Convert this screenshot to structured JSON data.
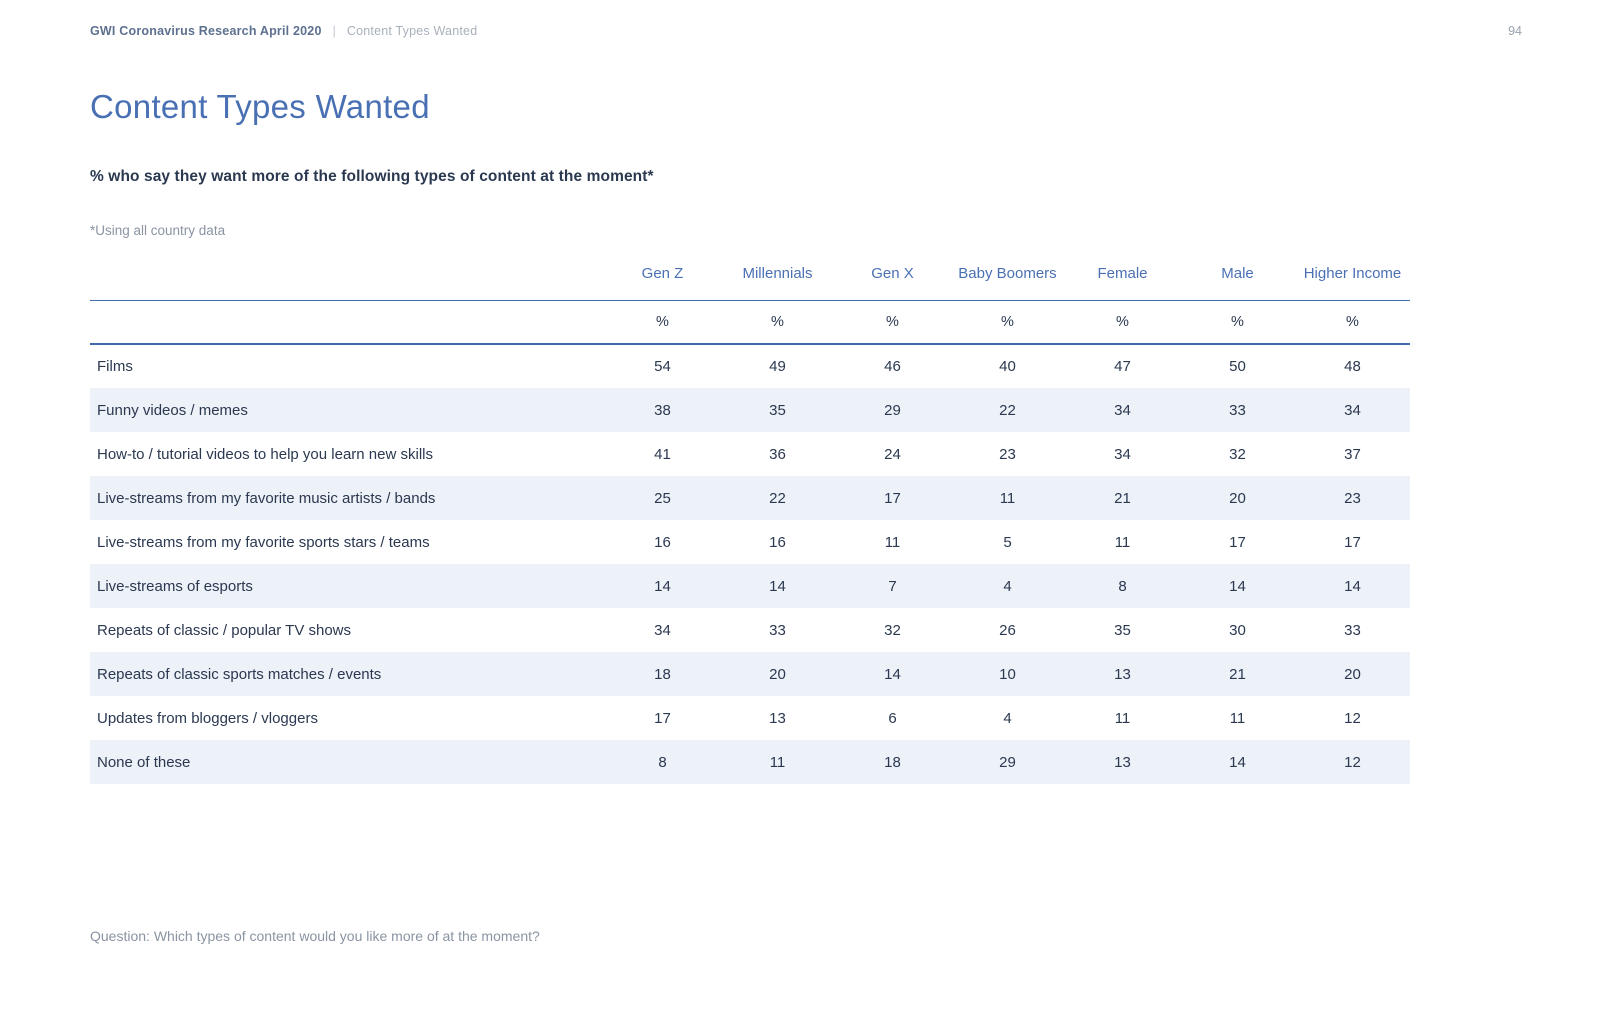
{
  "theme": {
    "accent": "#4a70b4",
    "rule": "#4468ae",
    "stripe": "#edf1f8",
    "text_dark": "#2a3850",
    "text_muted": "#8b94a3",
    "header_brand": "#5d7090"
  },
  "header": {
    "brand": "GWI Coronavirus Research April 2020",
    "separator": "|",
    "breadcrumb": "Content Types Wanted",
    "page_number": "94"
  },
  "title": "Content Types Wanted",
  "subtitle": "% who say they want more of the following types of content at the moment*",
  "footnote": "*Using all country data",
  "question": "Question: Which types of content would you like more of at the moment?",
  "chart_data": {
    "type": "table",
    "title": "Content Types Wanted",
    "unit": "%",
    "columns": [
      "Gen Z",
      "Millennials",
      "Gen X",
      "Baby Boomers",
      "Female",
      "Male",
      "Higher Income"
    ],
    "rows": [
      {
        "label": "Films",
        "values": [
          54,
          49,
          46,
          40,
          47,
          50,
          48
        ]
      },
      {
        "label": "Funny videos / memes",
        "values": [
          38,
          35,
          29,
          22,
          34,
          33,
          34
        ]
      },
      {
        "label": "How-to / tutorial videos to help you learn new skills",
        "values": [
          41,
          36,
          24,
          23,
          34,
          32,
          37
        ]
      },
      {
        "label": "Live-streams from my favorite music artists / bands",
        "values": [
          25,
          22,
          17,
          11,
          21,
          20,
          23
        ]
      },
      {
        "label": "Live-streams from my favorite sports stars / teams",
        "values": [
          16,
          16,
          11,
          5,
          11,
          17,
          17
        ]
      },
      {
        "label": "Live-streams of esports",
        "values": [
          14,
          14,
          7,
          4,
          8,
          14,
          14
        ]
      },
      {
        "label": "Repeats of classic / popular TV shows",
        "values": [
          34,
          33,
          32,
          26,
          35,
          30,
          33
        ]
      },
      {
        "label": "Repeats of classic sports matches / events",
        "values": [
          18,
          20,
          14,
          10,
          13,
          21,
          20
        ]
      },
      {
        "label": "Updates from bloggers / vloggers",
        "values": [
          17,
          13,
          6,
          4,
          11,
          11,
          12
        ]
      },
      {
        "label": "None of these",
        "values": [
          8,
          11,
          18,
          29,
          13,
          14,
          12
        ]
      }
    ]
  }
}
